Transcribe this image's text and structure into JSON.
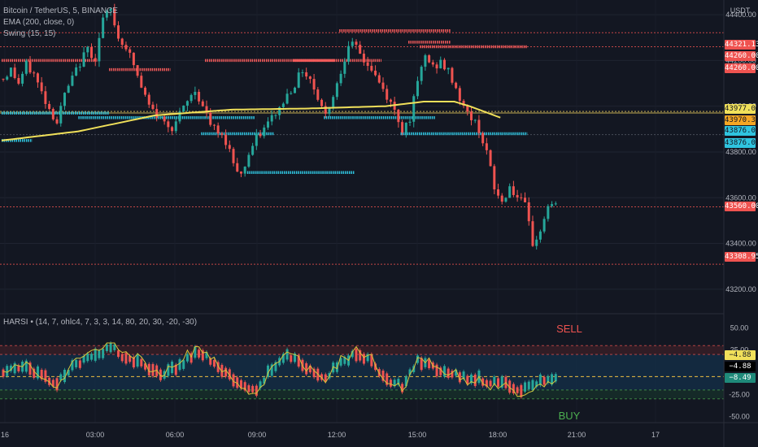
{
  "legend": {
    "symbol": "Bitcoin / TetherUS, 5, BINANCE",
    "ema": "EMA (200, close, 0)",
    "swing": "Swing (15, 15)",
    "harsi": "HARSI • (14, 7, ohlc4, 7, 3, 3, 14, 80, 20, 30, -20, -30)"
  },
  "price_axis": {
    "currency": "USDT",
    "ticks": [
      "44400.00",
      "44200.00",
      "44000.00",
      "43800.00",
      "43600.00",
      "43400.00",
      "43200.00"
    ]
  },
  "price_tags": [
    {
      "label": "44321.13",
      "kind": "red"
    },
    {
      "label": "44260.00",
      "kind": "red"
    },
    {
      "label": "44260.00",
      "kind": "red"
    },
    {
      "label": "43977.00",
      "kind": "yellow"
    },
    {
      "label": "43970.35",
      "kind": "orange"
    },
    {
      "label": "43876.00",
      "kind": "cyan"
    },
    {
      "label": "43876.00",
      "kind": "cyan"
    },
    {
      "label": "43560.00",
      "kind": "red"
    },
    {
      "label": "43308.95",
      "kind": "red"
    }
  ],
  "osc_axis": {
    "ticks": [
      "50.00",
      "25.00",
      "-25.00",
      "-50.00"
    ]
  },
  "osc_tags": [
    {
      "label": "−4.88",
      "kind": "yellow"
    },
    {
      "label": "−4.88",
      "kind": "black"
    },
    {
      "label": "−8.49",
      "kind": "teal"
    }
  ],
  "signals": {
    "sell": "SELL",
    "buy": "BUY"
  },
  "time_axis": [
    "16",
    "03:00",
    "06:00",
    "09:00",
    "12:00",
    "15:00",
    "18:00",
    "21:00",
    "17"
  ],
  "colors": {
    "bull": "#26a69a",
    "bear": "#ef5350",
    "ema": "#f0e05a",
    "swing_high": "#f05a5a",
    "swing_low": "#2fc4df",
    "bg": "#131722"
  },
  "chart_data": [
    {
      "type": "candlestick",
      "title": "Bitcoin / TetherUS, 5, BINANCE",
      "ylim": [
        43100,
        44450
      ],
      "x_ticks": [
        "16",
        "03:00",
        "06:00",
        "09:00",
        "12:00",
        "15:00",
        "18:00",
        "21:00",
        "17"
      ],
      "price_path": [
        [
          0,
          44120
        ],
        [
          2,
          44160
        ],
        [
          4,
          44100
        ],
        [
          6,
          44180
        ],
        [
          8,
          44140
        ],
        [
          10,
          44060
        ],
        [
          12,
          43990
        ],
        [
          14,
          43930
        ],
        [
          16,
          44050
        ],
        [
          18,
          44120
        ],
        [
          20,
          44190
        ],
        [
          22,
          44250
        ],
        [
          24,
          44210
        ],
        [
          26,
          44380
        ],
        [
          28,
          44420
        ],
        [
          30,
          44300
        ],
        [
          32,
          44260
        ],
        [
          34,
          44180
        ],
        [
          36,
          44080
        ],
        [
          38,
          44000
        ],
        [
          40,
          43960
        ],
        [
          42,
          43930
        ],
        [
          44,
          43910
        ],
        [
          46,
          43960
        ],
        [
          48,
          44020
        ],
        [
          50,
          44070
        ],
        [
          52,
          44000
        ],
        [
          54,
          43920
        ],
        [
          56,
          43880
        ],
        [
          58,
          43850
        ],
        [
          60,
          43760
        ],
        [
          62,
          43700
        ],
        [
          64,
          43790
        ],
        [
          66,
          43860
        ],
        [
          68,
          43900
        ],
        [
          70,
          43950
        ],
        [
          72,
          43990
        ],
        [
          74,
          44050
        ],
        [
          76,
          44100
        ],
        [
          78,
          44160
        ],
        [
          80,
          44120
        ],
        [
          82,
          44040
        ],
        [
          84,
          43960
        ],
        [
          86,
          44050
        ],
        [
          88,
          44150
        ],
        [
          90,
          44280
        ],
        [
          92,
          44250
        ],
        [
          94,
          44200
        ],
        [
          96,
          44160
        ],
        [
          98,
          44100
        ],
        [
          100,
          44040
        ],
        [
          102,
          43980
        ],
        [
          104,
          43900
        ],
        [
          106,
          43950
        ],
        [
          108,
          44100
        ],
        [
          110,
          44220
        ],
        [
          112,
          44170
        ],
        [
          114,
          44190
        ],
        [
          116,
          44150
        ],
        [
          118,
          44080
        ],
        [
          120,
          43990
        ],
        [
          122,
          43950
        ],
        [
          124,
          43900
        ],
        [
          126,
          43800
        ],
        [
          128,
          43640
        ],
        [
          130,
          43580
        ],
        [
          132,
          43650
        ],
        [
          134,
          43600
        ],
        [
          136,
          43560
        ],
        [
          138,
          43400
        ],
        [
          140,
          43450
        ],
        [
          142,
          43570
        ],
        [
          144,
          43560
        ]
      ],
      "ema": {
        "name": "EMA (200, close, 0)",
        "path": [
          [
            0,
            43850
          ],
          [
            20,
            43890
          ],
          [
            40,
            43960
          ],
          [
            60,
            43985
          ],
          [
            80,
            43990
          ],
          [
            100,
            44000
          ],
          [
            110,
            44020
          ],
          [
            118,
            44020
          ],
          [
            122,
            44000
          ],
          [
            130,
            43950
          ]
        ]
      },
      "swing_highs": [
        {
          "y": 44200,
          "x": [
            0,
            25
          ]
        },
        {
          "y": 44160,
          "x": [
            28,
            44
          ]
        },
        {
          "y": 44200,
          "x": [
            53,
            87
          ]
        },
        {
          "y": 44200,
          "x": [
            76,
            99
          ]
        },
        {
          "y": 44330,
          "x": [
            88,
            117
          ]
        },
        {
          "y": 44280,
          "x": [
            106,
            117
          ]
        },
        {
          "y": 44260,
          "x": [
            109,
            137
          ]
        }
      ],
      "swing_lows": [
        {
          "y": 43970,
          "x": [
            0,
            28
          ]
        },
        {
          "y": 43950,
          "x": [
            20,
            66
          ]
        },
        {
          "y": 43880,
          "x": [
            52,
            71
          ]
        },
        {
          "y": 43710,
          "x": [
            64,
            92
          ]
        },
        {
          "y": 43950,
          "x": [
            84,
            113
          ]
        },
        {
          "y": 43880,
          "x": [
            104,
            137
          ]
        },
        {
          "y": 43850,
          "x": [
            0,
            8
          ]
        }
      ],
      "levels": [
        44321.13,
        44260.0,
        43977.0,
        43970.35,
        43876.0,
        43560.0,
        43308.95
      ]
    },
    {
      "type": "bar",
      "title": "HARSI • (14, 7, ohlc4, 7, 3, 3, 14, 80, 20, 30, -20, -30)",
      "ylim": [
        -55,
        55
      ],
      "levels": [
        30,
        20,
        -20,
        -30
      ],
      "zero_line": -4.88,
      "last_value": -8.49,
      "annotations": [
        "SELL",
        "BUY"
      ],
      "osc_path": [
        [
          0,
          0
        ],
        [
          6,
          8
        ],
        [
          10,
          -5
        ],
        [
          14,
          -12
        ],
        [
          18,
          5
        ],
        [
          22,
          15
        ],
        [
          26,
          22
        ],
        [
          28,
          30
        ],
        [
          30,
          22
        ],
        [
          34,
          12
        ],
        [
          38,
          5
        ],
        [
          42,
          -2
        ],
        [
          46,
          8
        ],
        [
          50,
          22
        ],
        [
          54,
          15
        ],
        [
          58,
          0
        ],
        [
          62,
          -15
        ],
        [
          66,
          -20
        ],
        [
          70,
          5
        ],
        [
          74,
          20
        ],
        [
          76,
          15
        ],
        [
          80,
          2
        ],
        [
          84,
          -5
        ],
        [
          88,
          10
        ],
        [
          92,
          22
        ],
        [
          96,
          12
        ],
        [
          100,
          -8
        ],
        [
          104,
          -15
        ],
        [
          108,
          12
        ],
        [
          112,
          5
        ],
        [
          116,
          -2
        ],
        [
          120,
          -5
        ],
        [
          124,
          -8
        ],
        [
          128,
          -12
        ],
        [
          132,
          -15
        ],
        [
          134,
          -20
        ],
        [
          136,
          -18
        ],
        [
          138,
          -14
        ],
        [
          142,
          -8
        ],
        [
          144,
          -6
        ]
      ]
    }
  ]
}
